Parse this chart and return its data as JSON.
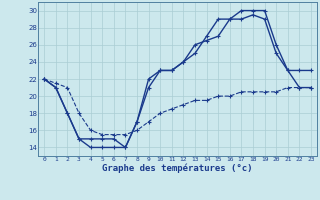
{
  "xlabel": "Graphe des températures (°c)",
  "ylim": [
    13.0,
    31.0
  ],
  "xlim": [
    -0.5,
    23.5
  ],
  "yticks": [
    14,
    16,
    18,
    20,
    22,
    24,
    26,
    28,
    30
  ],
  "xticks": [
    0,
    1,
    2,
    3,
    4,
    5,
    6,
    7,
    8,
    9,
    10,
    11,
    12,
    13,
    14,
    15,
    16,
    17,
    18,
    19,
    20,
    21,
    22,
    23
  ],
  "background_color": "#cce8ed",
  "grid_color": "#aacdd4",
  "line_color": "#1a3a8c",
  "series": [
    {
      "x": [
        0,
        1,
        2,
        3,
        4,
        5,
        6,
        7,
        8,
        9,
        10,
        11,
        12,
        13,
        14,
        15,
        16,
        17,
        18,
        19,
        20,
        21,
        22,
        23
      ],
      "y": [
        22,
        21,
        18,
        15,
        14,
        14,
        14,
        14,
        17,
        21,
        23,
        23,
        24,
        25,
        27,
        29,
        29,
        30,
        30,
        30,
        26,
        23,
        21,
        21
      ],
      "linestyle": "-",
      "linewidth": 1.0,
      "marker": true
    },
    {
      "x": [
        0,
        1,
        2,
        3,
        4,
        5,
        6,
        7,
        8,
        9,
        10,
        11,
        12,
        13,
        14,
        15,
        16,
        17,
        18,
        19,
        20,
        21,
        22,
        23
      ],
      "y": [
        22,
        21,
        18,
        15,
        15,
        15,
        15,
        14,
        17,
        22,
        23,
        23,
        24,
        26,
        26.5,
        27,
        29,
        29,
        29.5,
        29,
        25,
        23,
        23,
        23
      ],
      "linestyle": "-",
      "linewidth": 1.0,
      "marker": true
    },
    {
      "x": [
        0,
        1,
        2,
        3,
        4,
        5,
        6,
        7,
        8,
        9,
        10,
        11,
        12,
        13,
        14,
        15,
        16,
        17,
        18,
        19,
        20,
        21,
        22,
        23
      ],
      "y": [
        22,
        21.5,
        21,
        18,
        16,
        15.5,
        15.5,
        15.5,
        16,
        17,
        18,
        18.5,
        19,
        19.5,
        19.5,
        20,
        20,
        20.5,
        20.5,
        20.5,
        20.5,
        21,
        21,
        21
      ],
      "linestyle": "--",
      "linewidth": 0.8,
      "marker": true
    }
  ]
}
